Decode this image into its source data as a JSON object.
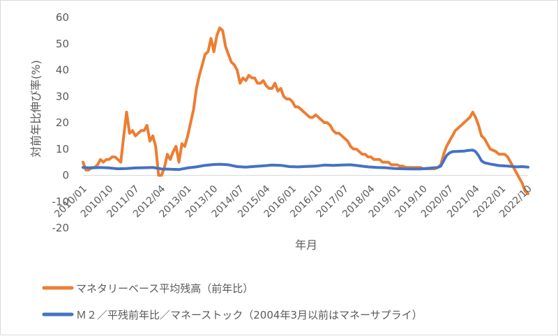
{
  "chart_data": {
    "type": "line",
    "xlabel": "年月",
    "ylabel": "対前年比伸び率(%)",
    "ylim": [
      -20,
      60
    ],
    "yticks": [
      -20,
      -10,
      0,
      10,
      20,
      30,
      40,
      50,
      60
    ],
    "grid": false,
    "legend_position": "bottom",
    "x_range": [
      "2010-01",
      "2022-10"
    ],
    "x_tick_labels": [
      "2010/01",
      "2010/10",
      "2011/07",
      "2012/04",
      "2013/01",
      "2013/10",
      "2014/07",
      "2015/04",
      "2016/01",
      "2016/10",
      "2017/07",
      "2018/04",
      "2019/01",
      "2019/10",
      "2020/07",
      "2021/04",
      "2022/01",
      "2022/10"
    ],
    "series": [
      {
        "name": "マネタリーベース平均残高（前年比）",
        "color": "#ED7D31",
        "points": [
          [
            "2010-01",
            5
          ],
          [
            "2010-02",
            2
          ],
          [
            "2010-03",
            2
          ],
          [
            "2010-04",
            3
          ],
          [
            "2010-05",
            3
          ],
          [
            "2010-06",
            4
          ],
          [
            "2010-07",
            6
          ],
          [
            "2010-08",
            5
          ],
          [
            "2010-09",
            6
          ],
          [
            "2010-10",
            6
          ],
          [
            "2010-11",
            7
          ],
          [
            "2010-12",
            7
          ],
          [
            "2011-01",
            6
          ],
          [
            "2011-02",
            5
          ],
          [
            "2011-03",
            15
          ],
          [
            "2011-04",
            24
          ],
          [
            "2011-05",
            16
          ],
          [
            "2011-06",
            17
          ],
          [
            "2011-07",
            15
          ],
          [
            "2011-08",
            16
          ],
          [
            "2011-09",
            17
          ],
          [
            "2011-10",
            17
          ],
          [
            "2011-11",
            19
          ],
          [
            "2011-12",
            13
          ],
          [
            "2012-01",
            15
          ],
          [
            "2012-02",
            11
          ],
          [
            "2012-03",
            0
          ],
          [
            "2012-04",
            0
          ],
          [
            "2012-05",
            3
          ],
          [
            "2012-06",
            8
          ],
          [
            "2012-07",
            6
          ],
          [
            "2012-08",
            9
          ],
          [
            "2012-09",
            11
          ],
          [
            "2012-10",
            5
          ],
          [
            "2012-11",
            12
          ],
          [
            "2012-12",
            11
          ],
          [
            "2013-01",
            15
          ],
          [
            "2013-02",
            20
          ],
          [
            "2013-03",
            25
          ],
          [
            "2013-04",
            33
          ],
          [
            "2013-05",
            38
          ],
          [
            "2013-06",
            42
          ],
          [
            "2013-07",
            46
          ],
          [
            "2013-08",
            47
          ],
          [
            "2013-09",
            52
          ],
          [
            "2013-10",
            47
          ],
          [
            "2013-11",
            53
          ],
          [
            "2013-12",
            56
          ],
          [
            "2014-01",
            55
          ],
          [
            "2014-02",
            49
          ],
          [
            "2014-03",
            46
          ],
          [
            "2014-04",
            43
          ],
          [
            "2014-05",
            42
          ],
          [
            "2014-06",
            40
          ],
          [
            "2014-07",
            35
          ],
          [
            "2014-08",
            37
          ],
          [
            "2014-09",
            36
          ],
          [
            "2014-10",
            38
          ],
          [
            "2014-11",
            37
          ],
          [
            "2014-12",
            37
          ],
          [
            "2015-01",
            35
          ],
          [
            "2015-02",
            35
          ],
          [
            "2015-03",
            36
          ],
          [
            "2015-04",
            34
          ],
          [
            "2015-05",
            33
          ],
          [
            "2015-06",
            33
          ],
          [
            "2015-07",
            35
          ],
          [
            "2015-08",
            32
          ],
          [
            "2015-09",
            33
          ],
          [
            "2015-10",
            30
          ],
          [
            "2015-11",
            29
          ],
          [
            "2015-12",
            29
          ],
          [
            "2016-01",
            28
          ],
          [
            "2016-02",
            26
          ],
          [
            "2016-03",
            26
          ],
          [
            "2016-04",
            25
          ],
          [
            "2016-05",
            24
          ],
          [
            "2016-06",
            23
          ],
          [
            "2016-07",
            22
          ],
          [
            "2016-08",
            22
          ],
          [
            "2016-09",
            23
          ],
          [
            "2016-10",
            22
          ],
          [
            "2016-11",
            21
          ],
          [
            "2016-12",
            20
          ],
          [
            "2017-01",
            20
          ],
          [
            "2017-02",
            19
          ],
          [
            "2017-03",
            17
          ],
          [
            "2017-04",
            16
          ],
          [
            "2017-05",
            16
          ],
          [
            "2017-06",
            15
          ],
          [
            "2017-07",
            14
          ],
          [
            "2017-08",
            13
          ],
          [
            "2017-09",
            11
          ],
          [
            "2017-10",
            10
          ],
          [
            "2017-11",
            10
          ],
          [
            "2017-12",
            9
          ],
          [
            "2018-01",
            8
          ],
          [
            "2018-02",
            8
          ],
          [
            "2018-03",
            7
          ],
          [
            "2018-04",
            7
          ],
          [
            "2018-05",
            6
          ],
          [
            "2018-06",
            6
          ],
          [
            "2018-07",
            6
          ],
          [
            "2018-08",
            5
          ],
          [
            "2018-09",
            5
          ],
          [
            "2018-10",
            5
          ],
          [
            "2018-11",
            4
          ],
          [
            "2018-12",
            4
          ],
          [
            "2019-01",
            4
          ],
          [
            "2019-02",
            3.5
          ],
          [
            "2019-03",
            3.5
          ],
          [
            "2019-04",
            3
          ],
          [
            "2019-05",
            3
          ],
          [
            "2019-06",
            3
          ],
          [
            "2019-07",
            3
          ],
          [
            "2019-08",
            3
          ],
          [
            "2019-09",
            3
          ],
          [
            "2019-10",
            2.5
          ],
          [
            "2019-11",
            2.5
          ],
          [
            "2019-12",
            2.5
          ],
          [
            "2020-01",
            2.5
          ],
          [
            "2020-02",
            2.5
          ],
          [
            "2020-03",
            3
          ],
          [
            "2020-04",
            4
          ],
          [
            "2020-05",
            8
          ],
          [
            "2020-06",
            11
          ],
          [
            "2020-07",
            13
          ],
          [
            "2020-08",
            15
          ],
          [
            "2020-09",
            17
          ],
          [
            "2020-10",
            18
          ],
          [
            "2020-11",
            19
          ],
          [
            "2020-12",
            20
          ],
          [
            "2021-01",
            21
          ],
          [
            "2021-02",
            22
          ],
          [
            "2021-03",
            24
          ],
          [
            "2021-04",
            22
          ],
          [
            "2021-05",
            19
          ],
          [
            "2021-06",
            15
          ],
          [
            "2021-07",
            14
          ],
          [
            "2021-08",
            12
          ],
          [
            "2021-09",
            10
          ],
          [
            "2021-10",
            9.5
          ],
          [
            "2021-11",
            9
          ],
          [
            "2021-12",
            8
          ],
          [
            "2022-01",
            8
          ],
          [
            "2022-02",
            8
          ],
          [
            "2022-03",
            7
          ],
          [
            "2022-04",
            5
          ],
          [
            "2022-05",
            3
          ],
          [
            "2022-06",
            1
          ],
          [
            "2022-07",
            -1
          ],
          [
            "2022-08",
            -3
          ],
          [
            "2022-09",
            -6
          ],
          [
            "2022-10",
            -7
          ]
        ]
      },
      {
        "name": "Ｍ２／平残前年比／マネーストック（2004年3月以前はマネーサプライ）",
        "color": "#4472C4",
        "points": [
          [
            "2010-01",
            3
          ],
          [
            "2010-04",
            2.8
          ],
          [
            "2010-07",
            3
          ],
          [
            "2010-10",
            2.8
          ],
          [
            "2011-01",
            2.5
          ],
          [
            "2011-04",
            2.6
          ],
          [
            "2011-07",
            2.8
          ],
          [
            "2011-10",
            2.9
          ],
          [
            "2012-01",
            3
          ],
          [
            "2012-04",
            2.4
          ],
          [
            "2012-07",
            2.3
          ],
          [
            "2012-10",
            2.2
          ],
          [
            "2013-01",
            2.8
          ],
          [
            "2013-04",
            3.2
          ],
          [
            "2013-07",
            3.8
          ],
          [
            "2013-10",
            4.1
          ],
          [
            "2013-12",
            4.2
          ],
          [
            "2014-03",
            4.0
          ],
          [
            "2014-06",
            3.3
          ],
          [
            "2014-09",
            3.1
          ],
          [
            "2014-12",
            3.4
          ],
          [
            "2015-03",
            3.6
          ],
          [
            "2015-06",
            3.9
          ],
          [
            "2015-09",
            3.8
          ],
          [
            "2015-12",
            3.3
          ],
          [
            "2016-03",
            3.2
          ],
          [
            "2016-06",
            3.4
          ],
          [
            "2016-09",
            3.5
          ],
          [
            "2016-12",
            3.9
          ],
          [
            "2017-03",
            3.8
          ],
          [
            "2017-06",
            3.9
          ],
          [
            "2017-09",
            4.0
          ],
          [
            "2017-12",
            3.6
          ],
          [
            "2018-03",
            3.2
          ],
          [
            "2018-06",
            3.0
          ],
          [
            "2018-09",
            2.9
          ],
          [
            "2018-12",
            2.6
          ],
          [
            "2019-03",
            2.5
          ],
          [
            "2019-06",
            2.4
          ],
          [
            "2019-09",
            2.4
          ],
          [
            "2019-12",
            2.7
          ],
          [
            "2020-03",
            3.0
          ],
          [
            "2020-04",
            3.5
          ],
          [
            "2020-05",
            5.5
          ],
          [
            "2020-06",
            7.5
          ],
          [
            "2020-07",
            8.5
          ],
          [
            "2020-08",
            9.0
          ],
          [
            "2020-10",
            9.1
          ],
          [
            "2020-12",
            9.2
          ],
          [
            "2021-01",
            9.4
          ],
          [
            "2021-03",
            9.6
          ],
          [
            "2021-04",
            9.0
          ],
          [
            "2021-05",
            7.5
          ],
          [
            "2021-06",
            5.5
          ],
          [
            "2021-07",
            4.8
          ],
          [
            "2021-09",
            4.3
          ],
          [
            "2021-12",
            3.7
          ],
          [
            "2022-03",
            3.5
          ],
          [
            "2022-06",
            3.2
          ],
          [
            "2022-08",
            3.3
          ],
          [
            "2022-10",
            3.1
          ]
        ]
      }
    ]
  }
}
